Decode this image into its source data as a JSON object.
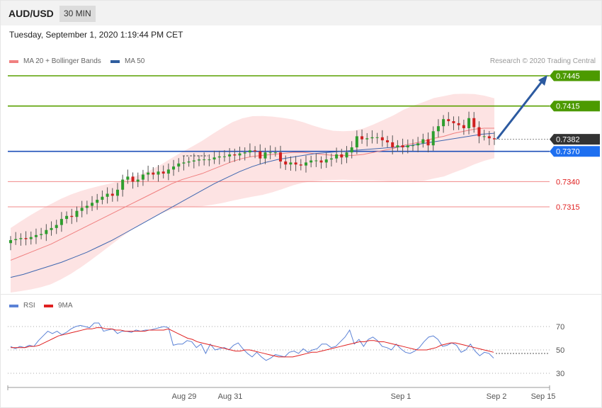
{
  "header": {
    "symbol": "AUD/USD",
    "timeframe": "30 MIN"
  },
  "datetime": "Tuesday, September 1, 2020 1:19:44 PM CET",
  "legend": [
    {
      "label": "MA 20 + Bollinger Bands",
      "color": "#f08080"
    },
    {
      "label": "MA 50",
      "color": "#2f5d9e"
    }
  ],
  "credit": "Research © 2020 Trading Central",
  "rsi_legend": [
    {
      "label": "RSI",
      "color": "#5b82d6"
    },
    {
      "label": "9MA",
      "color": "#e02020"
    }
  ],
  "chart_data": [
    {
      "type": "line",
      "name": "AUD/USD price",
      "ylim": [
        0.7262,
        0.7452
      ],
      "levels": [
        {
          "value": 0.7445,
          "label": "0.7445",
          "kind": "resistance",
          "color": "#4c9a00"
        },
        {
          "value": 0.7415,
          "label": "0.7415",
          "kind": "resistance",
          "color": "#4c9a00"
        },
        {
          "value": 0.7382,
          "label": "0.7382",
          "kind": "current",
          "color": "#333333"
        },
        {
          "value": 0.737,
          "label": "0.7370",
          "kind": "pivot",
          "color": "#1e5fd8"
        },
        {
          "value": 0.734,
          "label": "0.7340",
          "kind": "support",
          "color": "#e24848"
        },
        {
          "value": 0.7315,
          "label": "0.7315",
          "kind": "support",
          "color": "#e24848"
        }
      ],
      "x_ticks": [
        "Aug 29",
        "Aug 31",
        "Sep 1",
        "Sep 2",
        "Sep 15"
      ],
      "close": [
        0.7282,
        0.7283,
        0.7284,
        0.7283,
        0.7285,
        0.7287,
        0.7288,
        0.7292,
        0.7294,
        0.7297,
        0.7303,
        0.7306,
        0.7305,
        0.7311,
        0.7314,
        0.7316,
        0.7319,
        0.7322,
        0.7325,
        0.7328,
        0.7326,
        0.7332,
        0.7342,
        0.7345,
        0.734,
        0.7342,
        0.7347,
        0.7349,
        0.7347,
        0.735,
        0.7348,
        0.7352,
        0.7355,
        0.7358,
        0.7359,
        0.736,
        0.7361,
        0.7362,
        0.7362,
        0.7362,
        0.7364,
        0.7365,
        0.7365,
        0.7367,
        0.7366,
        0.7368,
        0.7369,
        0.7371,
        0.737,
        0.7363,
        0.7369,
        0.7369,
        0.7369,
        0.736,
        0.7357,
        0.7359,
        0.7357,
        0.7356,
        0.7359,
        0.7361,
        0.7361,
        0.7359,
        0.7362,
        0.7363,
        0.7367,
        0.7364,
        0.7369,
        0.7374,
        0.7385,
        0.7382,
        0.7383,
        0.7384,
        0.7384,
        0.7381,
        0.7379,
        0.7374,
        0.7376,
        0.7374,
        0.7376,
        0.7376,
        0.7378,
        0.7382,
        0.7376,
        0.739,
        0.7395,
        0.7402,
        0.74,
        0.7398,
        0.7396,
        0.7393,
        0.7403,
        0.7394,
        0.7385,
        0.7385,
        0.7383,
        0.7382
      ],
      "ma20": [
        0.7262,
        0.7266,
        0.727,
        0.7274,
        0.7278,
        0.7283,
        0.7288,
        0.7293,
        0.7298,
        0.7303,
        0.7308,
        0.7313,
        0.7318,
        0.7323,
        0.7328,
        0.7333,
        0.7338,
        0.7342,
        0.7345,
        0.7348,
        0.7352,
        0.7356,
        0.736,
        0.7363,
        0.7365,
        0.7366,
        0.7367,
        0.7368,
        0.7369,
        0.7369,
        0.7368,
        0.7367,
        0.7366,
        0.7366,
        0.7366,
        0.7367,
        0.7369,
        0.7371,
        0.7373,
        0.7376,
        0.7378,
        0.738,
        0.7383,
        0.7385,
        0.7388,
        0.739,
        0.7392,
        0.7393,
        0.7393
      ],
      "ma50": [
        0.7245,
        0.7248,
        0.7252,
        0.7256,
        0.726,
        0.7265,
        0.727,
        0.7276,
        0.7282,
        0.7289,
        0.7296,
        0.7303,
        0.731,
        0.7317,
        0.7324,
        0.7331,
        0.7338,
        0.7344,
        0.735,
        0.7355,
        0.7359,
        0.7362,
        0.7364,
        0.7366,
        0.7368,
        0.7369,
        0.737,
        0.7371,
        0.7372,
        0.7373,
        0.7374,
        0.7375,
        0.7377,
        0.7379,
        0.7381,
        0.7383,
        0.7385,
        0.7387,
        0.7388
      ]
    },
    {
      "type": "line",
      "name": "RSI",
      "ylim": [
        25,
        75
      ],
      "y_ticks": [
        70,
        50,
        30
      ],
      "rsi": [
        53,
        51,
        53,
        52,
        54,
        53,
        58,
        62,
        66,
        64,
        66,
        63,
        65,
        68,
        70,
        71,
        70,
        69,
        73,
        73,
        66,
        67,
        68,
        64,
        66,
        66,
        65,
        67,
        66,
        67,
        67,
        68,
        69,
        70,
        69,
        54,
        55,
        55,
        58,
        57,
        52,
        55,
        47,
        55,
        50,
        51,
        52,
        50,
        54,
        56,
        51,
        47,
        44,
        48,
        44,
        41,
        43,
        46,
        45,
        44,
        48,
        49,
        47,
        51,
        48,
        50,
        51,
        55,
        55,
        52,
        53,
        57,
        61,
        67,
        55,
        59,
        53,
        59,
        61,
        58,
        53,
        52,
        50,
        55,
        51,
        48,
        47,
        49,
        52,
        57,
        61,
        62,
        59,
        53,
        54,
        56,
        54,
        48,
        50,
        55,
        49,
        45,
        48,
        47,
        43
      ],
      "ma9": [
        52,
        52,
        52,
        52,
        53,
        53,
        54,
        56,
        58,
        60,
        62,
        63,
        64,
        65,
        66,
        67,
        68,
        68,
        69,
        69,
        68,
        68,
        67,
        67,
        66,
        66,
        66,
        66,
        66,
        67,
        67,
        67,
        67,
        68,
        66,
        64,
        62,
        60,
        59,
        57,
        56,
        55,
        54,
        53,
        52,
        51,
        50,
        49,
        49,
        50,
        50,
        49,
        48,
        47,
        46,
        45,
        44,
        44,
        44,
        44,
        45,
        46,
        47,
        48,
        48,
        49,
        50,
        51,
        52,
        53,
        54,
        55,
        56,
        57,
        57,
        58,
        58,
        57,
        57,
        56,
        55,
        54,
        53,
        52,
        51,
        50,
        50,
        50,
        51,
        52,
        54,
        55,
        56,
        56,
        55,
        54,
        53,
        52,
        51,
        50,
        49,
        48
      ],
      "overbought": 70,
      "oversold": 30
    }
  ]
}
